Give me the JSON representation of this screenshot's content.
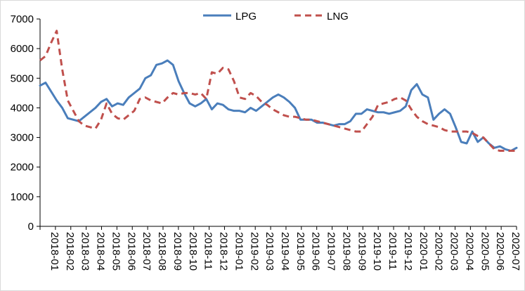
{
  "chart_data": {
    "type": "line",
    "title": "",
    "xlabel": "",
    "ylabel": "",
    "ylim": [
      0,
      7000
    ],
    "yticks": [
      0,
      1000,
      2000,
      3000,
      4000,
      5000,
      6000,
      7000
    ],
    "grid": false,
    "legend_position": "top-center",
    "x_tick_labels": [
      "2018-01",
      "2018-02",
      "2018-03",
      "2018-04",
      "2018-05",
      "2018-06",
      "2018-07",
      "2018-08",
      "2018-09",
      "2018-10",
      "2018-11",
      "2018-12",
      "2019-01",
      "2019-02",
      "2019-03",
      "2019-04",
      "2019-05",
      "2019-06",
      "2019-07",
      "2019-08",
      "2019-09",
      "2019-10",
      "2019-11",
      "2019-12",
      "2020-01",
      "2020-02",
      "2020-03",
      "2020-04",
      "2020-05",
      "2020-06",
      "2020-07"
    ],
    "series": [
      {
        "name": "LPG",
        "color": "#4a7ebb",
        "dash": "solid",
        "values": [
          4750,
          4850,
          4550,
          4250,
          4000,
          3650,
          3600,
          3550,
          3700,
          3850,
          4000,
          4200,
          4300,
          4050,
          4150,
          4100,
          4350,
          4500,
          4650,
          5000,
          5100,
          5450,
          5500,
          5600,
          5450,
          4900,
          4500,
          4150,
          4050,
          4150,
          4300,
          3950,
          4150,
          4100,
          3950,
          3900,
          3900,
          3850,
          4000,
          3900,
          4050,
          4200,
          4350,
          4450,
          4350,
          4200,
          4000,
          3600,
          3600,
          3600,
          3500,
          3500,
          3450,
          3400,
          3450,
          3450,
          3550,
          3800,
          3800,
          3950,
          3900,
          3850,
          3850,
          3800,
          3850,
          3900,
          4050,
          4600,
          4800,
          4450,
          4350,
          3600,
          3800,
          3950,
          3800,
          3350,
          2850,
          2800,
          3200,
          2850,
          3000,
          2800,
          2650,
          2700,
          2600,
          2550,
          2650
        ],
        "note": ""
      },
      {
        "name": "LNG",
        "color": "#c0504d",
        "dash": "dashed",
        "values": [
          5600,
          5750,
          6200,
          6600,
          5300,
          4250,
          3900,
          3550,
          3400,
          3350,
          3300,
          3600,
          4150,
          3800,
          3650,
          3600,
          3750,
          3900,
          4300,
          4350,
          4250,
          4200,
          4150,
          4350,
          4500,
          4450,
          4500,
          4500,
          4450,
          4500,
          4300,
          5200,
          5150,
          5350,
          5300,
          4900,
          4350,
          4300,
          4500,
          4400,
          4200,
          4100,
          3950,
          3850,
          3750,
          3700,
          3700,
          3650,
          3600,
          3600,
          3550,
          3500,
          3450,
          3400,
          3350,
          3300,
          3250,
          3200,
          3200,
          3450,
          3700,
          4100,
          4150,
          4200,
          4300,
          4350,
          4250,
          3950,
          3700,
          3550,
          3450,
          3400,
          3350,
          3250,
          3200,
          3200,
          3200,
          3200,
          3150,
          3050,
          3000,
          2800,
          2600,
          2550,
          2550,
          2550,
          2550
        ],
        "note": ""
      }
    ]
  }
}
